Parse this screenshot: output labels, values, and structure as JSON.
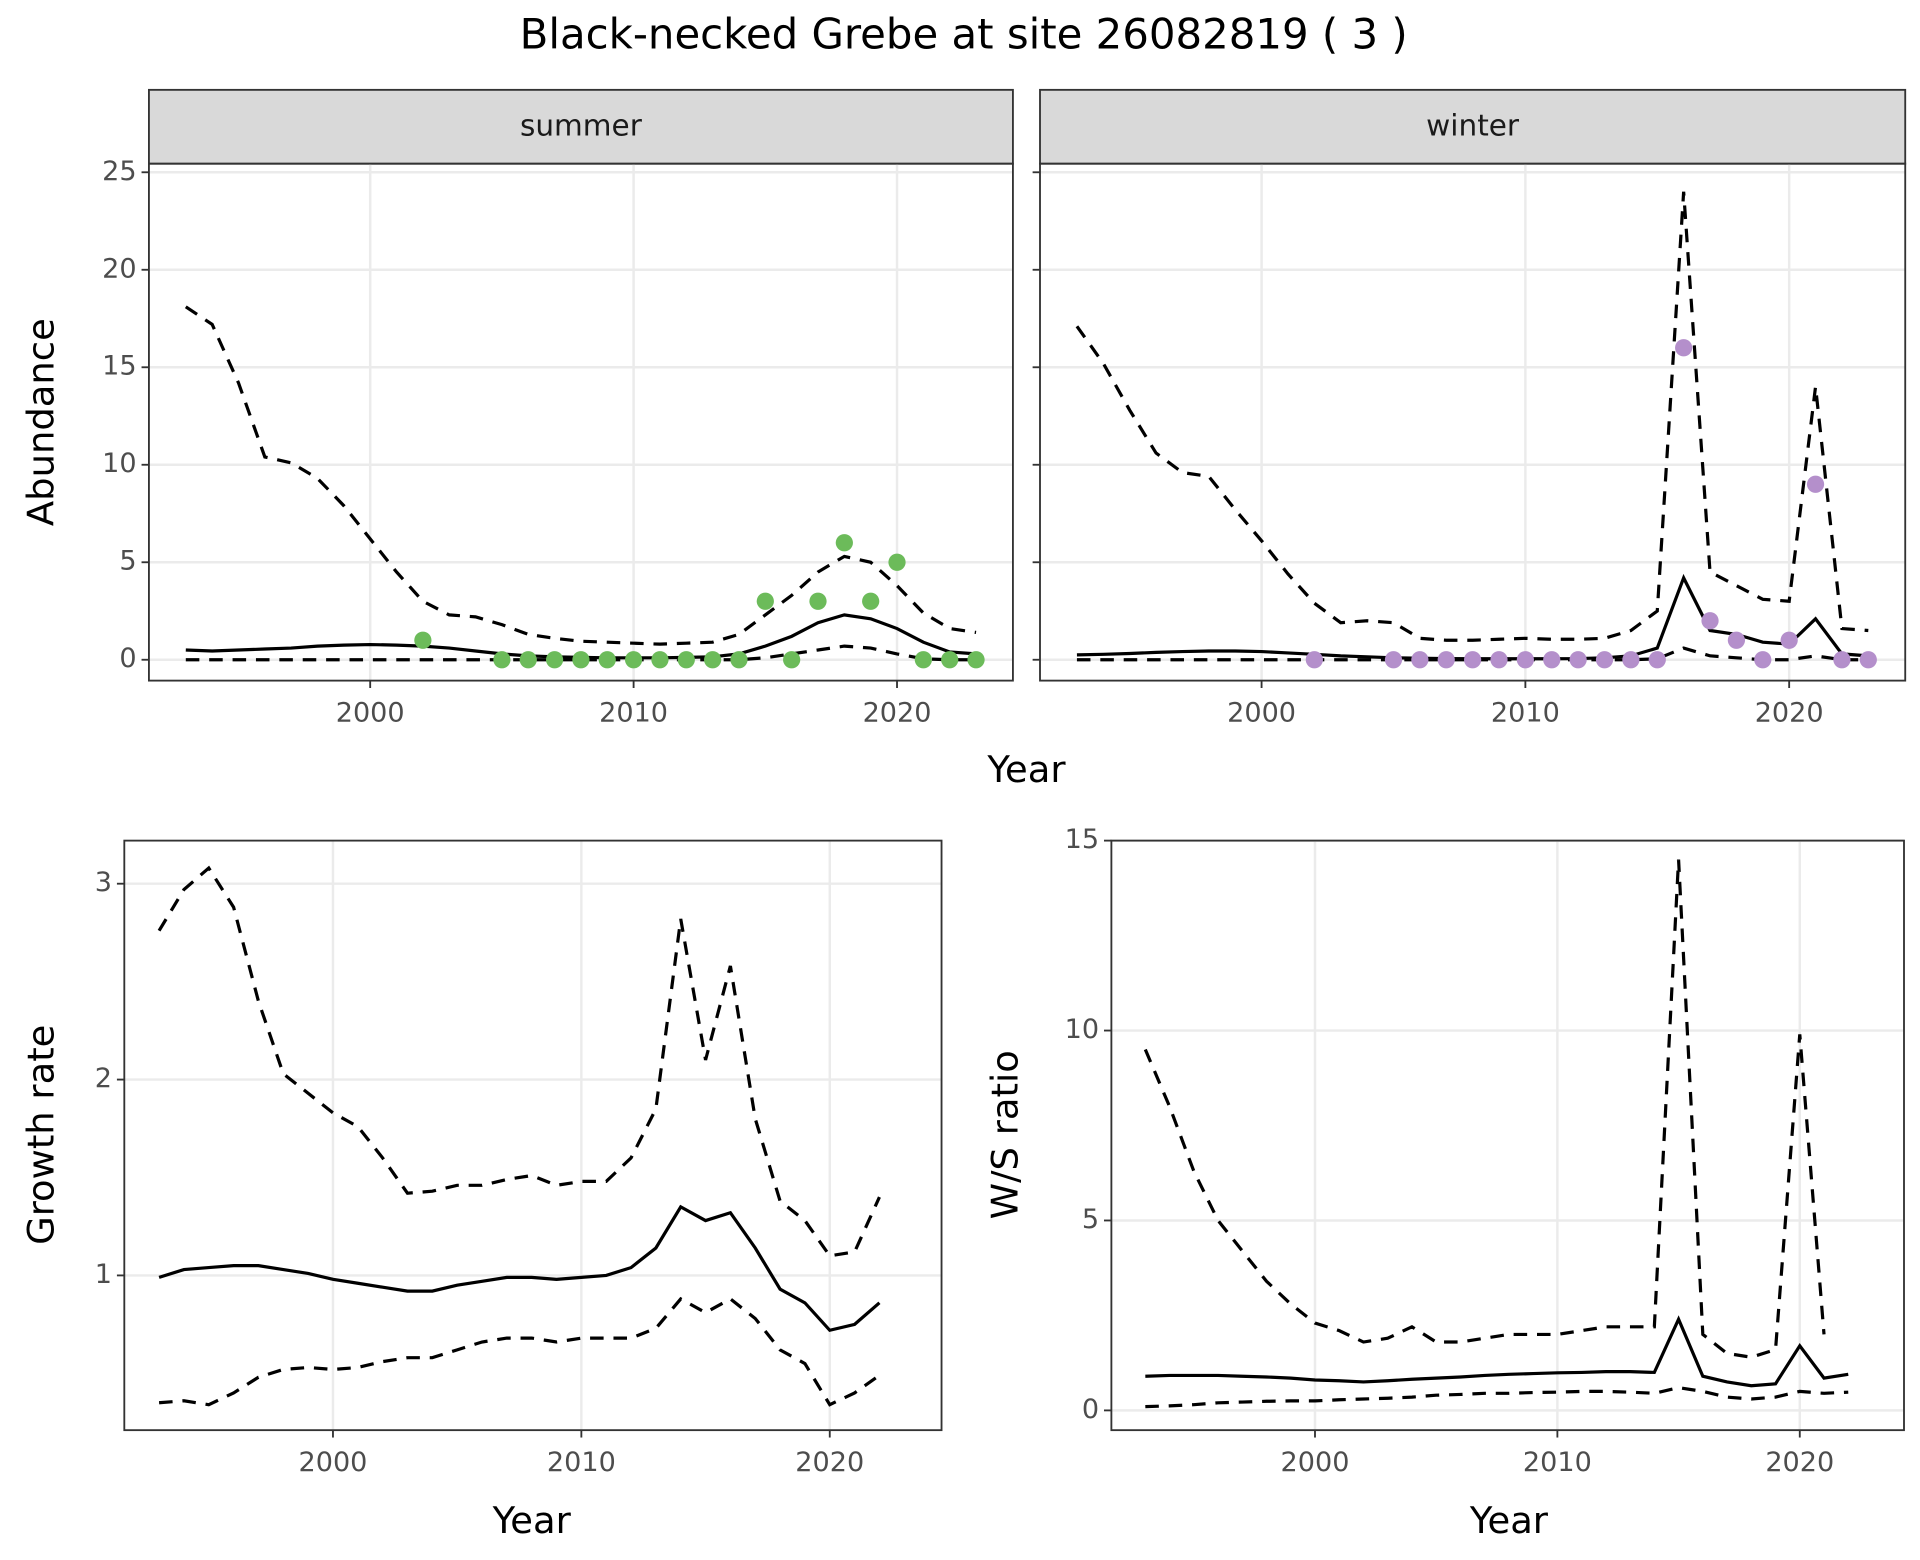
{
  "title": "Black-necked Grebe at site 26082819 ( 3 )",
  "chart_data": [
    {
      "type": "line",
      "facet": "summer",
      "xlabel": "Year",
      "ylabel": "Abundance",
      "grid": true,
      "show_ytick_labels": true,
      "xlim": [
        1991.6,
        2024.4
      ],
      "ylim": [
        -1.07,
        25.44
      ],
      "xticks": [
        2000,
        2010,
        2020
      ],
      "yticks": [
        0,
        5,
        10,
        15,
        20,
        25
      ],
      "x": [
        1993,
        1994,
        1995,
        1996,
        1997,
        1998,
        1999,
        2000,
        2001,
        2002,
        2003,
        2004,
        2005,
        2006,
        2007,
        2008,
        2009,
        2010,
        2011,
        2012,
        2013,
        2014,
        2015,
        2016,
        2017,
        2018,
        2019,
        2020,
        2021,
        2022,
        2023
      ],
      "series": [
        {
          "color": "#000000",
          "dashed": false,
          "values": [
            0.5,
            0.45,
            0.5,
            0.55,
            0.6,
            0.7,
            0.75,
            0.78,
            0.75,
            0.7,
            0.6,
            0.45,
            0.3,
            0.2,
            0.15,
            0.12,
            0.1,
            0.1,
            0.1,
            0.12,
            0.15,
            0.3,
            0.7,
            1.2,
            1.9,
            2.3,
            2.1,
            1.6,
            0.9,
            0.4,
            0.3
          ]
        },
        {
          "color": "#000000",
          "dashed": true,
          "values": [
            18.1,
            17.2,
            14.2,
            10.4,
            10.1,
            9.3,
            7.9,
            6.2,
            4.5,
            3.0,
            2.3,
            2.2,
            1.8,
            1.3,
            1.1,
            0.95,
            0.9,
            0.85,
            0.8,
            0.85,
            0.9,
            1.3,
            2.3,
            3.3,
            4.5,
            5.3,
            5.0,
            3.8,
            2.4,
            1.6,
            1.4
          ]
        },
        {
          "color": "#000000",
          "dashed": true,
          "values": [
            0,
            0,
            0,
            0,
            0,
            0,
            0,
            0,
            0,
            0,
            0,
            0,
            0,
            0,
            0,
            0,
            0,
            0,
            0,
            0,
            0,
            0,
            0.1,
            0.3,
            0.5,
            0.7,
            0.6,
            0.3,
            0.05,
            0,
            0
          ]
        }
      ],
      "points": {
        "color": "#6cbb5a",
        "x": [
          2002,
          2005,
          2006,
          2007,
          2008,
          2009,
          2010,
          2011,
          2012,
          2013,
          2014,
          2015,
          2016,
          2017,
          2018,
          2019,
          2020,
          2021,
          2022,
          2023
        ],
        "values": [
          1,
          0,
          0,
          0,
          0,
          0,
          0,
          0,
          0,
          0,
          0,
          3,
          0,
          3,
          6,
          3,
          5,
          0,
          0,
          0
        ]
      }
    },
    {
      "type": "line",
      "facet": "winter",
      "grid": true,
      "show_ytick_labels": false,
      "xlim": [
        1991.6,
        2024.4
      ],
      "ylim": [
        -1.07,
        25.44
      ],
      "xticks": [
        2000,
        2010,
        2020
      ],
      "yticks": [
        0,
        5,
        10,
        15,
        20,
        25
      ],
      "x": [
        1993,
        1994,
        1995,
        1996,
        1997,
        1998,
        1999,
        2000,
        2001,
        2002,
        2003,
        2004,
        2005,
        2006,
        2007,
        2008,
        2009,
        2010,
        2011,
        2012,
        2013,
        2014,
        2015,
        2016,
        2017,
        2018,
        2019,
        2020,
        2021,
        2022,
        2023
      ],
      "series": [
        {
          "color": "#000000",
          "dashed": false,
          "values": [
            0.25,
            0.28,
            0.32,
            0.38,
            0.42,
            0.45,
            0.45,
            0.42,
            0.35,
            0.28,
            0.2,
            0.15,
            0.1,
            0.08,
            0.06,
            0.05,
            0.05,
            0.05,
            0.05,
            0.06,
            0.1,
            0.2,
            0.6,
            4.2,
            1.5,
            1.3,
            0.9,
            0.8,
            2.1,
            0.3,
            0.2
          ]
        },
        {
          "color": "#000000",
          "dashed": true,
          "values": [
            17.1,
            15.2,
            12.8,
            10.6,
            9.6,
            9.4,
            7.7,
            6.1,
            4.4,
            2.9,
            1.9,
            2.0,
            1.9,
            1.1,
            1.0,
            1.0,
            1.05,
            1.1,
            1.05,
            1.05,
            1.1,
            1.5,
            2.5,
            24,
            4.5,
            3.8,
            3.1,
            3.0,
            14,
            1.6,
            1.5
          ]
        },
        {
          "color": "#000000",
          "dashed": true,
          "values": [
            0,
            0,
            0,
            0,
            0,
            0,
            0,
            0,
            0,
            0,
            0,
            0,
            0,
            0,
            0,
            0,
            0,
            0,
            0,
            0,
            0,
            0,
            0.05,
            0.6,
            0.2,
            0.1,
            0,
            0,
            0.2,
            0,
            0
          ]
        }
      ],
      "points": {
        "color": "#b48fcb",
        "x": [
          2002,
          2005,
          2006,
          2007,
          2008,
          2009,
          2010,
          2011,
          2012,
          2013,
          2014,
          2015,
          2016,
          2017,
          2018,
          2019,
          2020,
          2021,
          2022,
          2023
        ],
        "values": [
          0,
          0,
          0,
          0,
          0,
          0,
          0,
          0,
          0,
          0,
          0,
          0,
          16,
          2,
          1,
          0,
          1,
          9,
          0,
          0
        ]
      }
    },
    {
      "type": "line",
      "xlabel": "Year",
      "ylabel": "Growth rate",
      "grid": true,
      "show_ytick_labels": true,
      "xlim": [
        1991.6,
        2024.5
      ],
      "ylim": [
        0.21,
        3.22
      ],
      "xticks": [
        2000,
        2010,
        2020
      ],
      "yticks": [
        1,
        2,
        3
      ],
      "x": [
        1993,
        1994,
        1995,
        1996,
        1997,
        1998,
        1999,
        2000,
        2001,
        2002,
        2003,
        2004,
        2005,
        2006,
        2007,
        2008,
        2009,
        2010,
        2011,
        2012,
        2013,
        2014,
        2015,
        2016,
        2017,
        2018,
        2019,
        2020,
        2021,
        2022
      ],
      "series": [
        {
          "color": "#000000",
          "dashed": false,
          "values": [
            0.99,
            1.03,
            1.04,
            1.05,
            1.05,
            1.03,
            1.01,
            0.98,
            0.96,
            0.94,
            0.92,
            0.92,
            0.95,
            0.97,
            0.99,
            0.99,
            0.98,
            0.99,
            1.0,
            1.04,
            1.14,
            1.35,
            1.28,
            1.32,
            1.14,
            0.93,
            0.86,
            0.72,
            0.75,
            0.86
          ]
        },
        {
          "color": "#000000",
          "dashed": true,
          "values": [
            2.76,
            2.97,
            3.08,
            2.88,
            2.4,
            2.03,
            1.93,
            1.83,
            1.76,
            1.6,
            1.42,
            1.43,
            1.46,
            1.46,
            1.49,
            1.51,
            1.46,
            1.48,
            1.48,
            1.6,
            1.85,
            2.82,
            2.1,
            2.58,
            1.8,
            1.38,
            1.28,
            1.1,
            1.12,
            1.4
          ]
        },
        {
          "color": "#000000",
          "dashed": true,
          "values": [
            0.35,
            0.36,
            0.34,
            0.4,
            0.48,
            0.52,
            0.53,
            0.52,
            0.53,
            0.56,
            0.58,
            0.58,
            0.62,
            0.66,
            0.68,
            0.68,
            0.66,
            0.68,
            0.68,
            0.68,
            0.73,
            0.88,
            0.81,
            0.88,
            0.78,
            0.62,
            0.55,
            0.34,
            0.4,
            0.49
          ]
        }
      ]
    },
    {
      "type": "line",
      "xlabel": "Year",
      "ylabel": "W/S ratio",
      "grid": true,
      "show_ytick_labels": true,
      "xlim": [
        1991.6,
        2024.3
      ],
      "ylim": [
        -0.52,
        15
      ],
      "xticks": [
        2000,
        2010,
        2020
      ],
      "yticks": [
        0,
        5,
        10,
        15
      ],
      "x": [
        1993,
        1994,
        1995,
        1996,
        1997,
        1998,
        1999,
        2000,
        2001,
        2002,
        2003,
        2004,
        2005,
        2006,
        2007,
        2008,
        2009,
        2010,
        2011,
        2012,
        2013,
        2014,
        2015,
        2016,
        2017,
        2018,
        2019,
        2020,
        2021,
        2022
      ],
      "series": [
        {
          "color": "#000000",
          "dashed": false,
          "values": [
            0.9,
            0.92,
            0.92,
            0.92,
            0.9,
            0.88,
            0.85,
            0.8,
            0.78,
            0.75,
            0.78,
            0.82,
            0.85,
            0.88,
            0.92,
            0.95,
            0.97,
            0.99,
            1.0,
            1.02,
            1.02,
            1.0,
            2.4,
            0.9,
            0.75,
            0.65,
            0.7,
            1.7,
            0.85,
            0.95
          ]
        },
        {
          "color": "#000000",
          "dashed": true,
          "values": [
            9.5,
            8.0,
            6.3,
            5.0,
            4.2,
            3.4,
            2.8,
            2.3,
            2.1,
            1.8,
            1.9,
            2.2,
            1.8,
            1.8,
            1.9,
            2.0,
            2.0,
            2.0,
            2.1,
            2.2,
            2.2,
            2.2,
            14.5,
            2.0,
            1.5,
            1.4,
            1.6,
            9.9,
            2.0,
            null
          ]
        },
        {
          "color": "#000000",
          "dashed": true,
          "values": [
            0.1,
            0.12,
            0.15,
            0.2,
            0.22,
            0.24,
            0.25,
            0.25,
            0.28,
            0.3,
            0.32,
            0.35,
            0.4,
            0.42,
            0.45,
            0.45,
            0.47,
            0.48,
            0.5,
            0.5,
            0.48,
            0.45,
            0.6,
            0.5,
            0.35,
            0.3,
            0.35,
            0.5,
            0.45,
            0.48
          ]
        }
      ]
    }
  ]
}
